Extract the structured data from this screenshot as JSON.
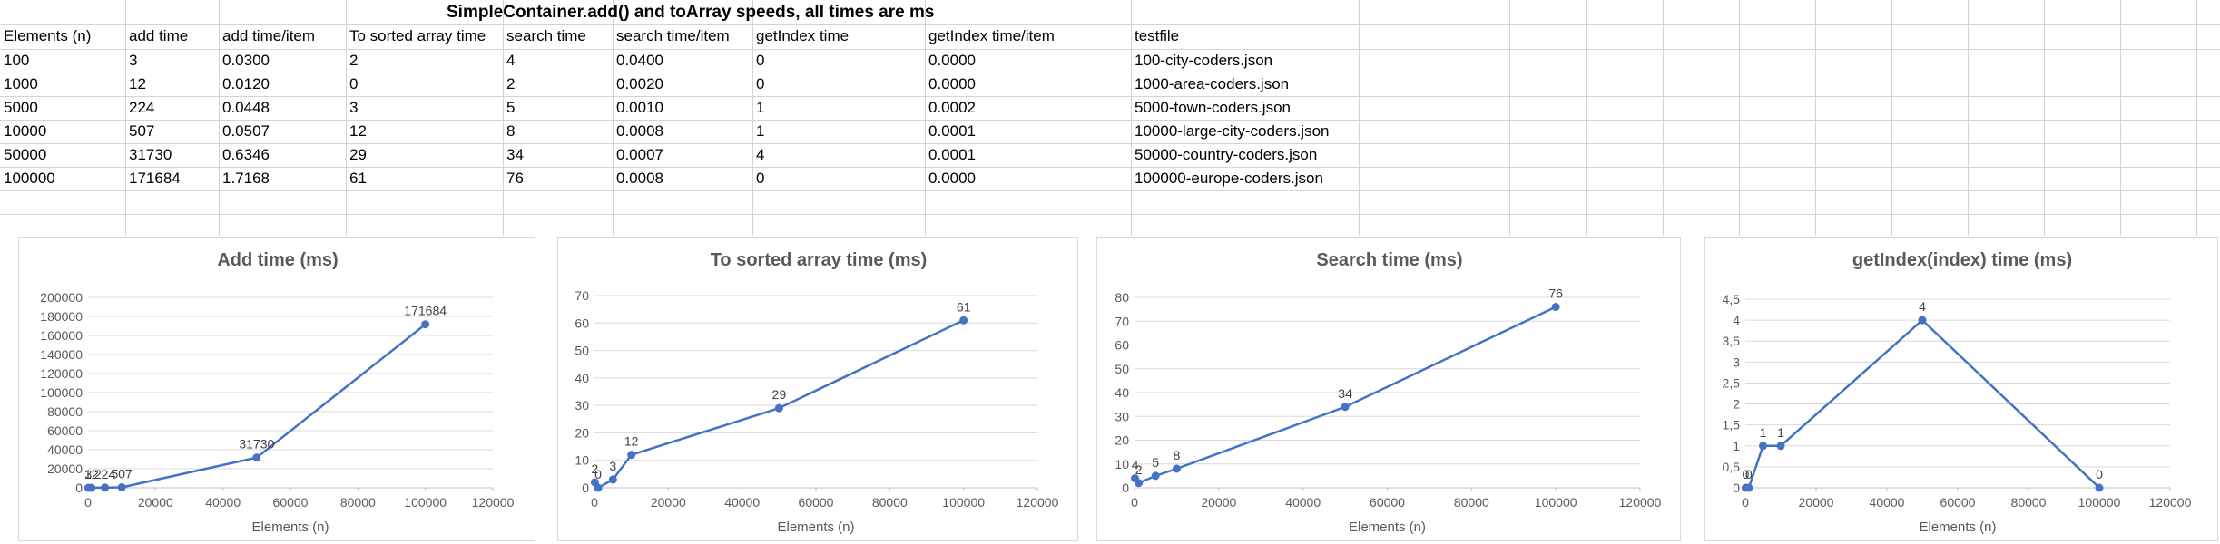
{
  "sheet": {
    "title": "SimpleContainer.add() and toArray speeds, all times are ms",
    "headers": [
      "Elements (n)",
      "add time",
      "add time/item",
      "To sorted array time",
      "search time",
      "search time/item",
      "getIndex time",
      "getIndex time/item",
      "testfile"
    ],
    "rows": [
      [
        "100",
        "3",
        "0.0300",
        "2",
        "4",
        "0.0400",
        "0",
        "0.0000",
        "100-city-coders.json"
      ],
      [
        "1000",
        "12",
        "0.0120",
        "0",
        "2",
        "0.0020",
        "0",
        "0.0000",
        "1000-area-coders.json"
      ],
      [
        "5000",
        "224",
        "0.0448",
        "3",
        "5",
        "0.0010",
        "1",
        "0.0002",
        "5000-town-coders.json"
      ],
      [
        "10000",
        "507",
        "0.0507",
        "12",
        "8",
        "0.0008",
        "1",
        "0.0001",
        "10000-large-city-coders.json"
      ],
      [
        "50000",
        "31730",
        "0.6346",
        "29",
        "34",
        "0.0007",
        "4",
        "0.0001",
        "50000-country-coders.json"
      ],
      [
        "100000",
        "171684",
        "1.7168",
        "61",
        "76",
        "0.0008",
        "0",
        "0.0000",
        "100000-europe-coders.json"
      ]
    ]
  },
  "chart_data": [
    {
      "type": "line",
      "title": "Add time (ms)",
      "xlabel": "Elements (n)",
      "ylabel": "",
      "x": [
        100,
        1000,
        5000,
        10000,
        50000,
        100000
      ],
      "y": [
        3,
        12,
        224,
        507,
        31730,
        171684
      ],
      "data_labels": [
        "3",
        "12",
        "224",
        "507",
        "31730",
        "171684"
      ],
      "xlim": [
        0,
        120000
      ],
      "ylim": [
        0,
        200000
      ],
      "xticks": [
        "0",
        "20000",
        "40000",
        "60000",
        "80000",
        "100000",
        "120000"
      ],
      "yticks": [
        "0",
        "20000",
        "40000",
        "60000",
        "80000",
        "100000",
        "120000",
        "140000",
        "160000",
        "180000",
        "200000"
      ],
      "grid": true,
      "color": "#4472C4"
    },
    {
      "type": "line",
      "title": "To sorted array time (ms)",
      "xlabel": "Elements (n)",
      "ylabel": "",
      "x": [
        100,
        1000,
        5000,
        10000,
        50000,
        100000
      ],
      "y": [
        2,
        0,
        3,
        12,
        29,
        61
      ],
      "data_labels": [
        "2",
        "0",
        "3",
        "12",
        "29",
        "61"
      ],
      "xlim": [
        0,
        120000
      ],
      "ylim": [
        0,
        70
      ],
      "xticks": [
        "0",
        "20000",
        "40000",
        "60000",
        "80000",
        "100000",
        "120000"
      ],
      "yticks": [
        "0",
        "10",
        "20",
        "30",
        "40",
        "50",
        "60",
        "70"
      ],
      "grid": true,
      "color": "#4472C4"
    },
    {
      "type": "line",
      "title": "Search time (ms)",
      "xlabel": "Elements (n)",
      "ylabel": "",
      "x": [
        100,
        1000,
        5000,
        10000,
        50000,
        100000
      ],
      "y": [
        4,
        2,
        5,
        8,
        34,
        76
      ],
      "data_labels": [
        "4",
        "2",
        "5",
        "8",
        "34",
        "76"
      ],
      "xlim": [
        0,
        120000
      ],
      "ylim": [
        0,
        80
      ],
      "xticks": [
        "0",
        "20000",
        "40000",
        "60000",
        "80000",
        "100000",
        "120000"
      ],
      "yticks": [
        "0",
        "10",
        "20",
        "30",
        "40",
        "50",
        "60",
        "70",
        "80"
      ],
      "grid": true,
      "color": "#4472C4"
    },
    {
      "type": "line",
      "title": "getIndex(index) time (ms)",
      "xlabel": "Elements (n)",
      "ylabel": "",
      "x": [
        100,
        1000,
        5000,
        10000,
        50000,
        100000
      ],
      "y": [
        0,
        0,
        1,
        1,
        4,
        0
      ],
      "data_labels": [
        "0",
        "0",
        "1",
        "1",
        "4",
        "0"
      ],
      "xlim": [
        0,
        120000
      ],
      "ylim": [
        0,
        4.5
      ],
      "xticks": [
        "0",
        "20000",
        "40000",
        "60000",
        "80000",
        "100000",
        "120000"
      ],
      "yticks": [
        "0",
        "0,5",
        "1",
        "1,5",
        "2",
        "2,5",
        "3",
        "3,5",
        "4",
        "4,5"
      ],
      "grid": true,
      "color": "#4472C4"
    }
  ]
}
